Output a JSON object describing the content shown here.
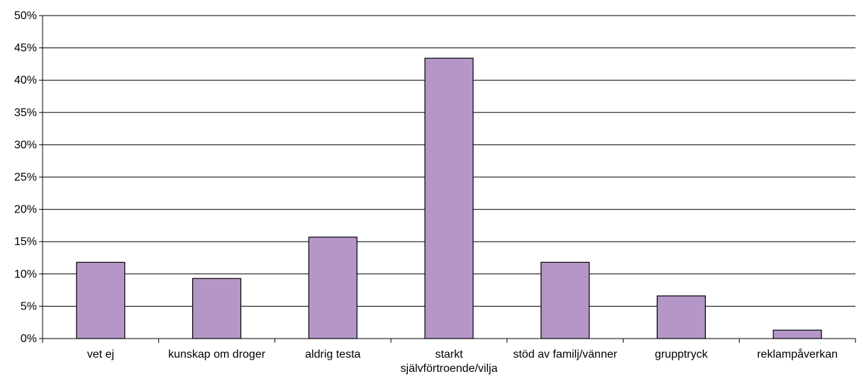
{
  "chart_data": {
    "type": "bar",
    "title": "",
    "xlabel": "",
    "ylabel": "",
    "categories": [
      [
        "vet ej"
      ],
      [
        "kunskap om droger"
      ],
      [
        "aldrig testa"
      ],
      [
        "starkt",
        "självförtroende/vilja"
      ],
      [
        "stöd av familj/vänner"
      ],
      [
        "grupptryck"
      ],
      [
        "reklampåverkan"
      ]
    ],
    "values": [
      11.8,
      9.3,
      15.7,
      43.4,
      11.8,
      6.6,
      1.3
    ],
    "ylim": [
      0,
      50
    ],
    "yticks": [
      0,
      5,
      10,
      15,
      20,
      25,
      30,
      35,
      40,
      45,
      50
    ],
    "ytick_labels": [
      "0%",
      "5%",
      "10%",
      "15%",
      "20%",
      "25%",
      "30%",
      "35%",
      "40%",
      "45%",
      "50%"
    ],
    "grid": true,
    "legend": "none",
    "colors": {
      "bar_fill": "#b497c8",
      "bar_stroke": "#000000",
      "grid": "#000000",
      "axis": "#000000"
    }
  }
}
